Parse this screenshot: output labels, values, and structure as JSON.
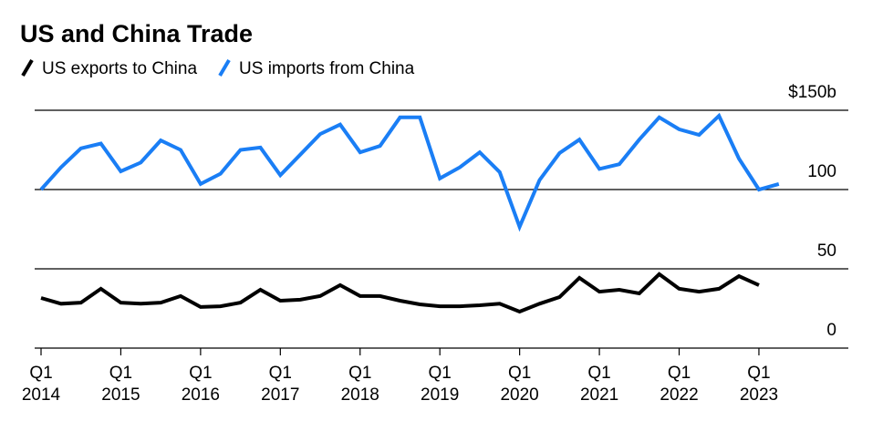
{
  "chart_data": {
    "type": "line",
    "title": "US and China Trade",
    "categories": [
      "Q1 2014",
      null,
      null,
      null,
      "Q1 2015",
      null,
      null,
      null,
      "Q1 2016",
      null,
      null,
      null,
      "Q1 2017",
      null,
      null,
      null,
      "Q1 2018",
      null,
      null,
      null,
      "Q1 2019",
      null,
      null,
      null,
      "Q1 2020",
      null,
      null,
      null,
      "Q1 2021",
      null,
      null,
      null,
      "Q1 2022",
      null,
      null,
      null,
      "Q1 2023",
      null
    ],
    "series": [
      {
        "name": "US exports to China",
        "color": "#000000",
        "values": [
          31.6,
          28,
          28.7,
          37.4,
          28.7,
          28,
          28.7,
          32.8,
          25.9,
          26.4,
          28.7,
          36.8,
          29.9,
          30.5,
          32.8,
          39.7,
          32.8,
          32.8,
          29.9,
          27.6,
          26.4,
          26.4,
          27,
          28,
          23,
          28,
          32.2,
          44.3,
          35.6,
          36.8,
          34.5,
          46.6,
          37.4,
          35.6,
          37.4,
          45.4,
          39.7,
          null
        ]
      },
      {
        "name": "US imports from China",
        "color": "#1a7ef5",
        "values": [
          100,
          114,
          126,
          129,
          111.5,
          117,
          131,
          125,
          103.5,
          110,
          125,
          126.5,
          109,
          122,
          135,
          141,
          123.5,
          127.5,
          145.5,
          145.5,
          107,
          114,
          123.5,
          111,
          76.5,
          106,
          123,
          131.5,
          113,
          116,
          131.5,
          145.5,
          138,
          134.5,
          146.5,
          119.5,
          100,
          103.5
        ]
      }
    ],
    "ylim": [
      0,
      150
    ],
    "yticks": [
      0,
      50,
      100,
      {
        "value": 150,
        "label": "$150b"
      }
    ],
    "grid": true
  }
}
